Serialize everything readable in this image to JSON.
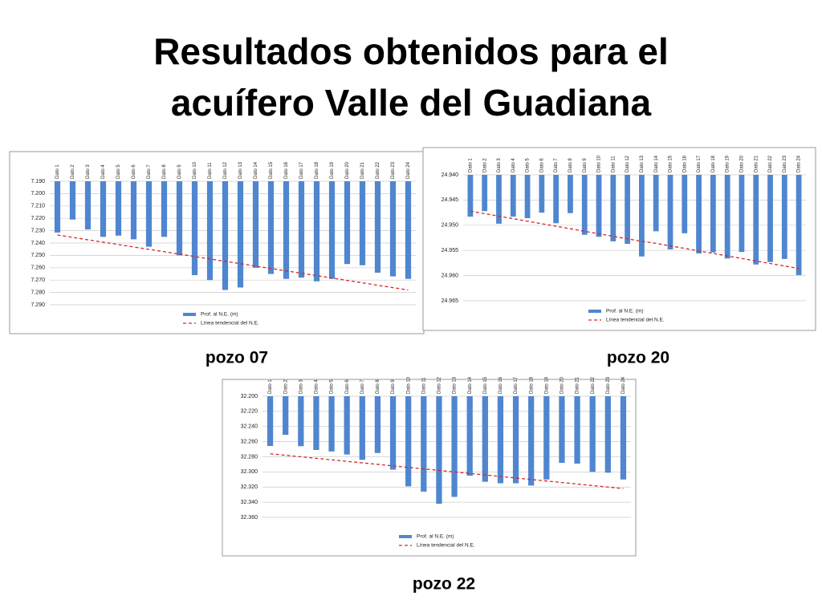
{
  "slide": {
    "title_lines": [
      "Resultados obtenidos para el",
      "acuífero Valle del Guadiana"
    ]
  },
  "chart_data": [
    {
      "type": "bar",
      "caption": "pozo 07",
      "reverse_y": true,
      "grid": true,
      "legend": "bottom",
      "categories": [
        "Dato 1",
        "Dato 2",
        "Dato 3",
        "Dato 4",
        "Dato 5",
        "Dato 6",
        "Dato 7",
        "Dato 8",
        "Dato 9",
        "Dato 10",
        "Dato 11",
        "Dato 12",
        "Dato 13",
        "Dato 14",
        "Dato 15",
        "Dato 16",
        "Dato 17",
        "Dato 18",
        "Dato 19",
        "Dato 20",
        "Dato 21",
        "Dato 22",
        "Dato 23",
        "Dato 24"
      ],
      "series": [
        {
          "name": "Prof. al N.E. (m)",
          "color": "#4f86cf",
          "values": [
            7.2315,
            7.221,
            7.229,
            7.235,
            7.234,
            7.237,
            7.243,
            7.235,
            7.25,
            7.266,
            7.27,
            7.278,
            7.276,
            7.26,
            7.265,
            7.269,
            7.268,
            7.271,
            7.269,
            7.257,
            7.258,
            7.264,
            7.267,
            7.269
          ]
        },
        {
          "name": "Línea tendencial del N.E.",
          "color": "#d62728",
          "dashed": true,
          "values": [
            7.2335,
            7.2354,
            7.2374,
            7.2393,
            7.2412,
            7.2432,
            7.2451,
            7.247,
            7.249,
            7.2509,
            7.2529,
            7.2548,
            7.2567,
            7.2587,
            7.2606,
            7.2625,
            7.2645,
            7.2664,
            7.2683,
            7.2703,
            7.2722,
            7.2742,
            7.2761,
            7.278
          ]
        }
      ],
      "ylim": [
        7.19,
        7.29
      ],
      "yticks": [
        {
          "value": 7.19,
          "label": "7.190"
        },
        {
          "value": 7.2,
          "label": "7.200"
        },
        {
          "value": 7.21,
          "label": "7.210"
        },
        {
          "value": 7.22,
          "label": "7.220"
        },
        {
          "value": 7.23,
          "label": "7.230"
        },
        {
          "value": 7.24,
          "label": "7.240"
        },
        {
          "value": 7.25,
          "label": "7.250"
        },
        {
          "value": 7.26,
          "label": "7.260"
        },
        {
          "value": 7.27,
          "label": "7.270"
        },
        {
          "value": 7.28,
          "label": "7.280"
        },
        {
          "value": 7.29,
          "label": "7.290"
        }
      ]
    },
    {
      "type": "bar",
      "caption": "pozo 20",
      "reverse_y": true,
      "grid": true,
      "legend": "bottom",
      "categories": [
        "Dato 1",
        "Dato 2",
        "Dato 3",
        "Dato 4",
        "Dato 5",
        "Dato 6",
        "Dato 7",
        "Dato 8",
        "Dato 9",
        "Dato 10",
        "Dato 11",
        "Dato 12",
        "Dato 13",
        "Dato 14",
        "Dato 15",
        "Dato 16",
        "Dato 17",
        "Dato 18",
        "Dato 19",
        "Dato 20",
        "Dato 21",
        "Dato 22",
        "Dato 23",
        "Dato 24"
      ],
      "series": [
        {
          "name": "Prof. al N.E. (m)",
          "color": "#4f86cf",
          "values": [
            24.9483,
            24.9472,
            24.9497,
            24.9483,
            24.9486,
            24.9475,
            24.9496,
            24.9476,
            24.9519,
            24.9523,
            24.9532,
            24.9537,
            24.9562,
            24.9512,
            24.9548,
            24.9516,
            24.9556,
            24.9554,
            24.9566,
            24.9553,
            24.9578,
            24.9573,
            24.9567,
            24.9599
          ]
        },
        {
          "name": "Línea tendencial del N.E.",
          "color": "#d62728",
          "dashed": true,
          "values": [
            24.9472,
            24.9477,
            24.9482,
            24.9487,
            24.9492,
            24.9497,
            24.9502,
            24.9507,
            24.9512,
            24.9517,
            24.9522,
            24.9527,
            24.9532,
            24.9536,
            24.9541,
            24.9546,
            24.9551,
            24.9556,
            24.9561,
            24.9566,
            24.9571,
            24.9576,
            24.9581,
            24.9586
          ]
        }
      ],
      "ylim": [
        24.94,
        24.965
      ],
      "yticks": [
        {
          "value": 24.94,
          "label": "24.940"
        },
        {
          "value": 24.945,
          "label": "24.945"
        },
        {
          "value": 24.95,
          "label": "24.950"
        },
        {
          "value": 24.955,
          "label": "24.955"
        },
        {
          "value": 24.96,
          "label": "24.960"
        },
        {
          "value": 24.965,
          "label": "24.965"
        }
      ]
    },
    {
      "type": "bar",
      "caption": "pozo 22",
      "reverse_y": true,
      "grid": true,
      "legend": "bottom",
      "categories": [
        "Dato 1",
        "Dato 2",
        "Dato 3",
        "Dato 4",
        "Dato 5",
        "Dato 6",
        "Dato 7",
        "Dato 8",
        "Dato 9",
        "Dato 10",
        "Dato 11",
        "Dato 12",
        "Dato 13",
        "Dato 14",
        "Dato 15",
        "Dato 16",
        "Dato 17",
        "Dato 18",
        "Dato 19",
        "Dato 20",
        "Dato 21",
        "Dato 22",
        "Dato 23",
        "Dato 24"
      ],
      "series": [
        {
          "name": "Prof. al N.E. (m)",
          "color": "#4f86cf",
          "values": [
            32.2657,
            32.251,
            32.266,
            32.271,
            32.273,
            32.277,
            32.284,
            32.275,
            32.297,
            32.319,
            32.326,
            32.342,
            32.333,
            32.305,
            32.313,
            32.315,
            32.315,
            32.318,
            32.31,
            32.288,
            32.289,
            32.3,
            32.301,
            32.31
          ]
        },
        {
          "name": "Línea tendencial del N.E.",
          "color": "#d62728",
          "dashed": true,
          "values": [
            32.276,
            32.278,
            32.28,
            32.282,
            32.284,
            32.286,
            32.288,
            32.29,
            32.292,
            32.294,
            32.296,
            32.298,
            32.3,
            32.302,
            32.304,
            32.306,
            32.308,
            32.31,
            32.312,
            32.314,
            32.316,
            32.318,
            32.32,
            32.322
          ]
        }
      ],
      "ylim": [
        32.2,
        32.36
      ],
      "yticks": [
        {
          "value": 32.2,
          "label": "32.200"
        },
        {
          "value": 32.22,
          "label": "32.220"
        },
        {
          "value": 32.24,
          "label": "32.240"
        },
        {
          "value": 32.26,
          "label": "32.260"
        },
        {
          "value": 32.28,
          "label": "32.280"
        },
        {
          "value": 32.3,
          "label": "32.300"
        },
        {
          "value": 32.32,
          "label": "32.320"
        },
        {
          "value": 32.34,
          "label": "32.340"
        },
        {
          "value": 32.36,
          "label": "32.360"
        }
      ]
    }
  ]
}
